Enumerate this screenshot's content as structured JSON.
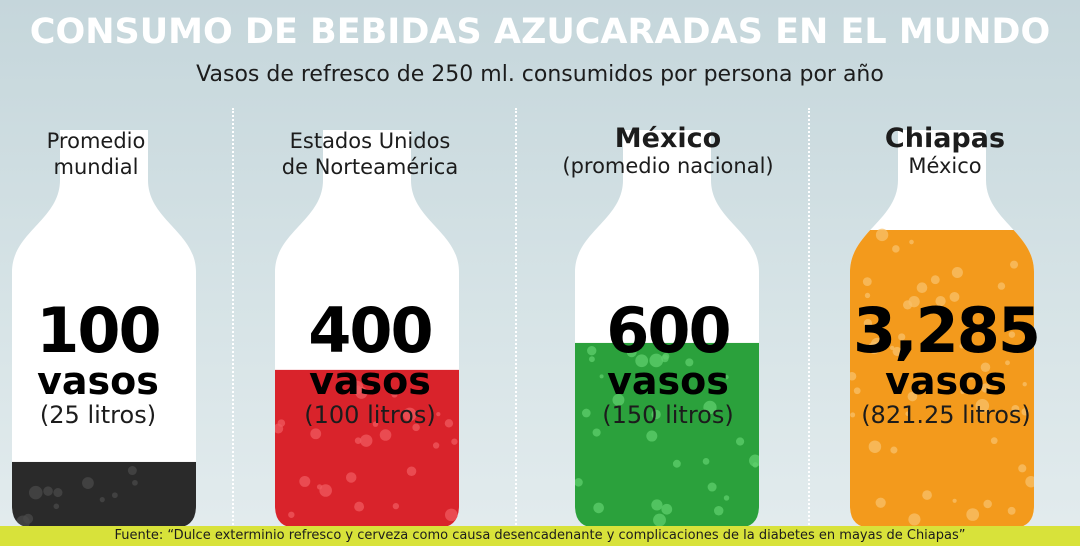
{
  "header": {
    "title": "CONSUMO DE BEBIDAS AZUCARADAS EN EL MUNDO",
    "subtitle": "Vasos de refresco de 250 ml. consumidos por persona por año"
  },
  "chart_data": {
    "type": "bar",
    "title": "CONSUMO DE BEBIDAS AZUCARADAS EN EL MUNDO",
    "ylabel": "Vasos de refresco de 250 ml. consumidos por persona por año",
    "categories": [
      "Promedio mundial",
      "Estados Unidos de Norteamérica",
      "México (promedio nacional)",
      "Chiapas México"
    ],
    "values": [
      100,
      400,
      600,
      3285
    ],
    "litros": [
      25,
      100,
      150,
      821.25
    ],
    "series": [
      {
        "name": "vasos",
        "values": [
          100,
          400,
          600,
          3285
        ]
      },
      {
        "name": "litros",
        "values": [
          25,
          100,
          150,
          821.25
        ]
      }
    ]
  },
  "items": [
    {
      "label_bold": "",
      "label_normal": "Promedio\nmundial",
      "value_text": "100",
      "unit": "vasos",
      "litros_text": "(25 litros)",
      "liquid_color": "#2a2a2a",
      "drop_color": "#4a4a4a"
    },
    {
      "label_bold": "",
      "label_normal": "Estados Unidos\nde Norteamérica",
      "value_text": "400",
      "unit": "vasos",
      "litros_text": "(100 litros)",
      "liquid_color": "#d9232b",
      "drop_color": "#ef5a5f"
    },
    {
      "label_bold": "México",
      "label_normal": "(promedio nacional)",
      "value_text": "600",
      "unit": "vasos",
      "litros_text": "(150 litros)",
      "liquid_color": "#2ba13c",
      "drop_color": "#5fcf6c"
    },
    {
      "label_bold": "Chiapas",
      "label_normal": "México",
      "value_text": "3,285",
      "unit": "vasos",
      "litros_text": "(821.25 litros)",
      "liquid_color": "#f39a1c",
      "drop_color": "#f8c06a"
    }
  ],
  "footer": {
    "source": "Fuente: “Dulce exterminio refresco y cerveza como causa desencadenante y complicaciones de la diabetes en mayas de Chiapas”"
  }
}
